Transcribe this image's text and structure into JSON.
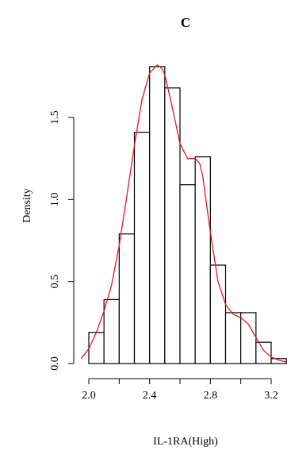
{
  "chart_data": {
    "type": "histogram",
    "title": "C",
    "xlabel": "IL-1RA(High)",
    "ylabel": "Density",
    "xlim": [
      1.95,
      3.3
    ],
    "ylim": [
      0,
      1.85
    ],
    "x_ticks": [
      2.0,
      2.4,
      2.8,
      3.2
    ],
    "x_tick_labels": [
      "2.0",
      "2.4",
      "2.8",
      "3.2"
    ],
    "y_ticks": [
      0.0,
      0.5,
      1.0,
      1.5
    ],
    "y_tick_labels": [
      "0.0",
      "0.5",
      "1.0",
      "1.5"
    ],
    "bin_width": 0.1,
    "bins": [
      {
        "start": 2.0,
        "end": 2.1,
        "density": 0.19
      },
      {
        "start": 2.1,
        "end": 2.2,
        "density": 0.39
      },
      {
        "start": 2.2,
        "end": 2.3,
        "density": 0.79
      },
      {
        "start": 2.3,
        "end": 2.4,
        "density": 1.41
      },
      {
        "start": 2.4,
        "end": 2.5,
        "density": 1.81
      },
      {
        "start": 2.5,
        "end": 2.6,
        "density": 1.68
      },
      {
        "start": 2.6,
        "end": 2.7,
        "density": 1.09
      },
      {
        "start": 2.7,
        "end": 2.8,
        "density": 1.26
      },
      {
        "start": 2.8,
        "end": 2.9,
        "density": 0.6
      },
      {
        "start": 2.9,
        "end": 3.0,
        "density": 0.31
      },
      {
        "start": 3.0,
        "end": 3.1,
        "density": 0.31
      },
      {
        "start": 3.1,
        "end": 3.2,
        "density": 0.13
      },
      {
        "start": 3.2,
        "end": 3.3,
        "density": 0.03
      }
    ],
    "density_curve": {
      "color": "#e8151b",
      "x": [
        1.95,
        2.0,
        2.05,
        2.1,
        2.15,
        2.2,
        2.25,
        2.3,
        2.35,
        2.4,
        2.45,
        2.48,
        2.5,
        2.55,
        2.6,
        2.65,
        2.7,
        2.73,
        2.75,
        2.8,
        2.85,
        2.9,
        2.95,
        3.0,
        3.05,
        3.1,
        3.15,
        3.2,
        3.25,
        3.3
      ],
      "y": [
        0.03,
        0.09,
        0.19,
        0.32,
        0.48,
        0.72,
        1.02,
        1.33,
        1.61,
        1.77,
        1.82,
        1.8,
        1.76,
        1.56,
        1.34,
        1.25,
        1.25,
        1.22,
        1.14,
        0.8,
        0.5,
        0.36,
        0.3,
        0.28,
        0.24,
        0.16,
        0.08,
        0.04,
        0.02,
        0.01
      ]
    },
    "grid": false,
    "legend": "none"
  }
}
